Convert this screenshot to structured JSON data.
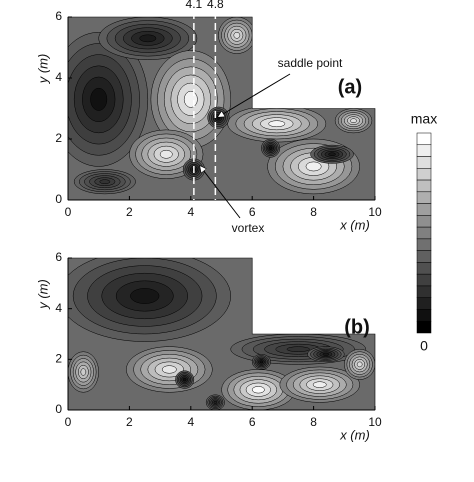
{
  "chart_data": [
    {
      "type": "contour",
      "panel_label": "(a)",
      "x_label": "x (m)",
      "y_label": "y (m)",
      "xlim": [
        0,
        10
      ],
      "ylim": [
        0,
        6
      ],
      "xticks": [
        0,
        2,
        4,
        6,
        8,
        10
      ],
      "yticks": [
        0,
        2,
        4,
        6
      ],
      "vlines": [
        4.1,
        4.8
      ],
      "annotations": [
        "saddle point",
        "vortex"
      ],
      "colorbar": {
        "top": "max",
        "bottom": 0
      }
    },
    {
      "type": "contour",
      "panel_label": "(b)",
      "x_label": "x (m)",
      "y_label": "y (m)",
      "xlim": [
        0,
        10
      ],
      "ylim": [
        0,
        6
      ],
      "xticks": [
        0,
        2,
        4,
        6,
        8,
        10
      ],
      "yticks": [
        0,
        2,
        4,
        6
      ]
    }
  ]
}
